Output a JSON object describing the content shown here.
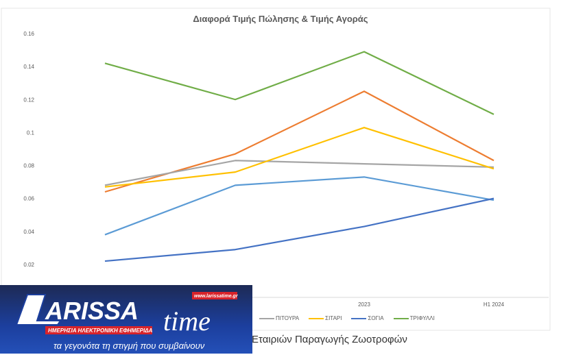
{
  "chart_data": {
    "type": "line",
    "title": "Διαφορά Τιμής Πώλησης & Τιμής Αγοράς",
    "categories": [
      "",
      "",
      "2023",
      "H1 2024"
    ],
    "ylim": [
      0,
      0.16
    ],
    "yticks": [
      "0.02",
      "0.04",
      "0.06",
      "0.08",
      "0.1",
      "0.12",
      "0.14",
      "0.16"
    ],
    "grid": false,
    "legend": "bottom",
    "series": [
      {
        "name": "",
        "color": "#ED7D31",
        "values": [
          0.064,
          0.087,
          0.125,
          0.083
        ]
      },
      {
        "name": "",
        "color": "#5B9BD5",
        "values": [
          0.038,
          0.068,
          0.073,
          0.059
        ]
      },
      {
        "name": "ΠΙΤΟΥΡΑ",
        "color": "#A5A5A5",
        "values": [
          0.068,
          0.083,
          0.081,
          0.079
        ]
      },
      {
        "name": "ΣΙΤΑΡΙ",
        "color": "#FFC000",
        "values": [
          0.067,
          0.076,
          0.103,
          0.078
        ]
      },
      {
        "name": "ΣΟΓΙΑ",
        "color": "#4472C4",
        "values": [
          0.022,
          0.029,
          0.043,
          0.06
        ]
      },
      {
        "name": "ΤΡΙΦΥΛΛΙ",
        "color": "#70AD47",
        "values": [
          0.142,
          0.12,
          0.149,
          0.111
        ]
      }
    ]
  },
  "caption": "Εταιριών Παραγωγής Ζωοτροφών",
  "logo": {
    "name": "LARISSA time",
    "url": "www.larissatime.gr",
    "tagline_red": "ΗΜΕΡΗΣΙΑ ΗΛΕΚΤΡΟΝΙΚΗ ΕΦΗΜΕΡΙΔΑ",
    "slogan": "τα γεγονότα τη στιγμή που συμβαίνουν"
  }
}
